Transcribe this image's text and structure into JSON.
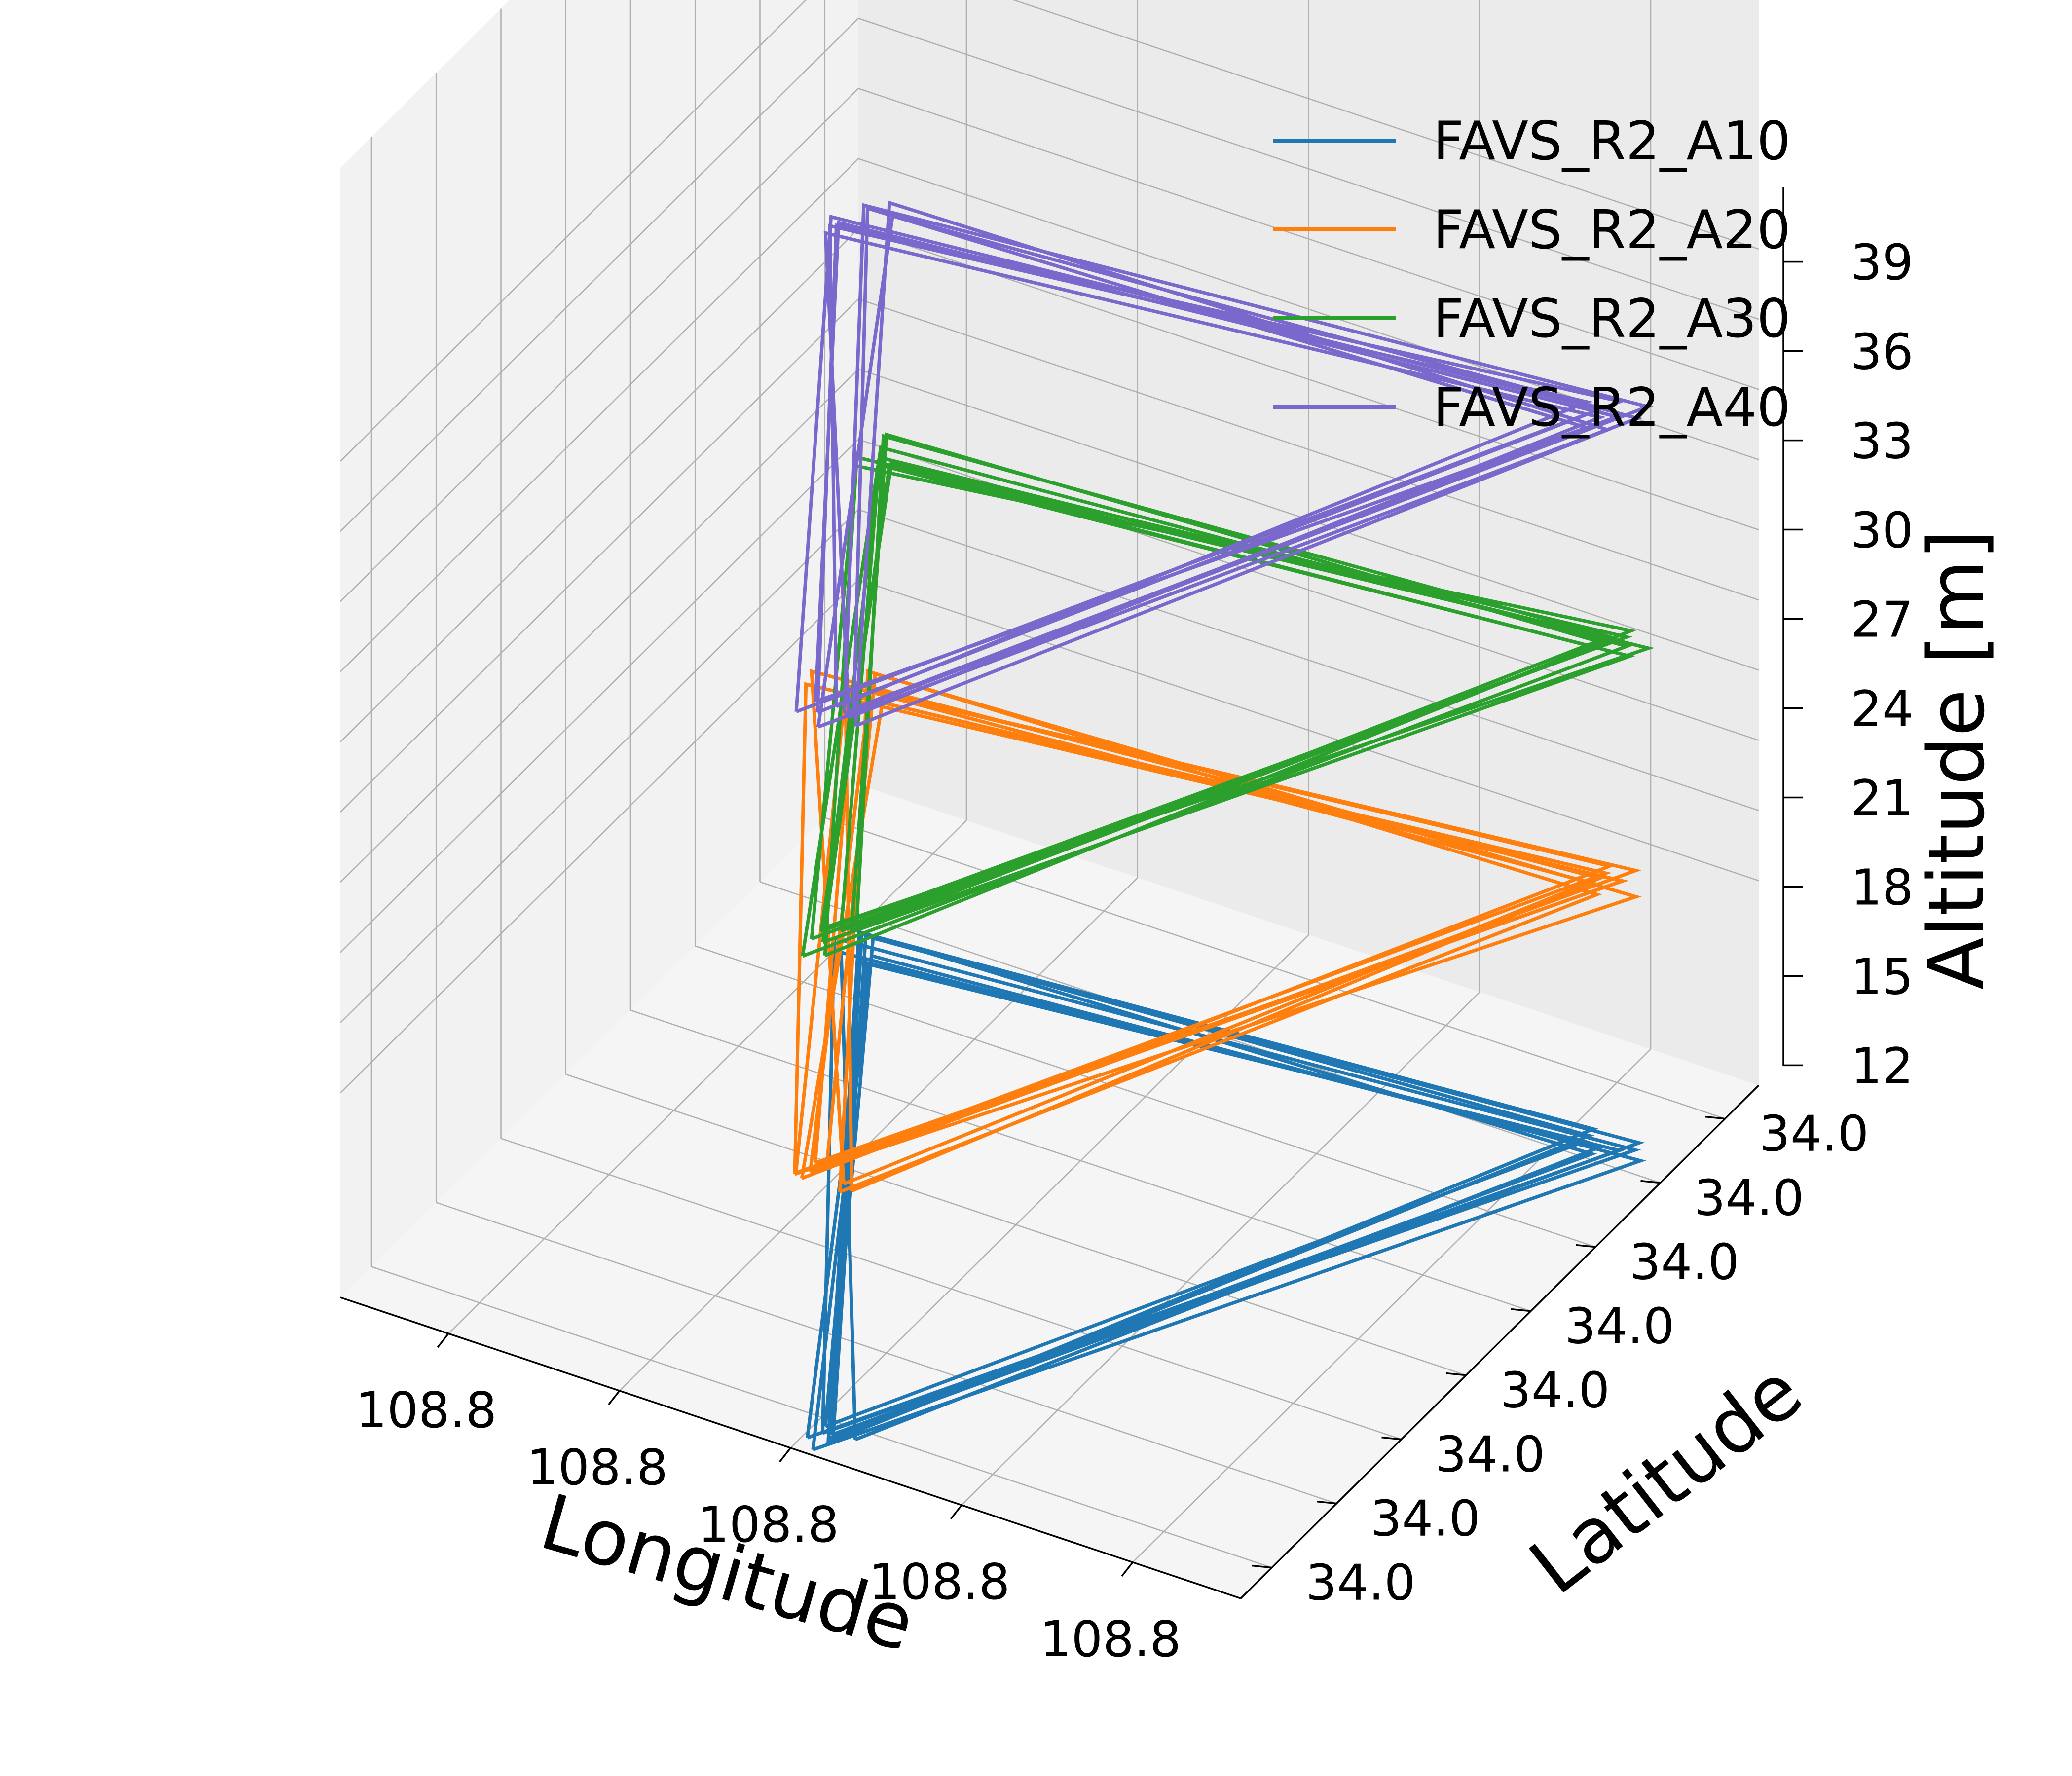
{
  "chart_data": {
    "type": "line",
    "projection": "3d",
    "title": "",
    "xlabel": "Longitude",
    "ylabel": "Latitude",
    "zlabel": "Altitude [m]",
    "x_ticks": [
      "108.8",
      "108.8",
      "108.8",
      "108.8",
      "108.8"
    ],
    "y_ticks": [
      "34.0",
      "34.0",
      "34.0",
      "34.0",
      "34.0",
      "34.0",
      "34.0",
      "34.0"
    ],
    "z_ticks": [
      "12",
      "15",
      "18",
      "21",
      "24",
      "27",
      "30",
      "33",
      "36",
      "39"
    ],
    "zlim": [
      10,
      41
    ],
    "grid": true,
    "legend_position": "top-right",
    "series": [
      {
        "name": "FAVS_R2_A10",
        "color": "#1f77b4",
        "altitude": 10,
        "path": [
          {
            "u": 0.56,
            "v": 0.94
          },
          {
            "u": 0.955,
            "v": 0.08
          },
          {
            "u": 0.07,
            "v": 0.04
          },
          {
            "u": 0.56,
            "v": 0.94
          }
        ]
      },
      {
        "name": "FAVS_R2_A20",
        "color": "#ff7f0e",
        "altitude": 20,
        "path": [
          {
            "u": 0.56,
            "v": 0.94
          },
          {
            "u": 0.955,
            "v": 0.08
          },
          {
            "u": 0.07,
            "v": 0.04
          },
          {
            "u": 0.56,
            "v": 0.94
          }
        ]
      },
      {
        "name": "FAVS_R2_A30",
        "color": "#2ca02c",
        "altitude": 30,
        "path": [
          {
            "u": 0.56,
            "v": 0.94
          },
          {
            "u": 0.955,
            "v": 0.08
          },
          {
            "u": 0.07,
            "v": 0.04
          },
          {
            "u": 0.56,
            "v": 0.94
          }
        ]
      },
      {
        "name": "FAVS_R2_A40",
        "color": "#7b68cc",
        "altitude": 40,
        "path": [
          {
            "u": 0.56,
            "v": 0.94
          },
          {
            "u": 0.955,
            "v": 0.08
          },
          {
            "u": 0.07,
            "v": 0.04
          },
          {
            "u": 0.56,
            "v": 0.94
          }
        ]
      }
    ]
  }
}
